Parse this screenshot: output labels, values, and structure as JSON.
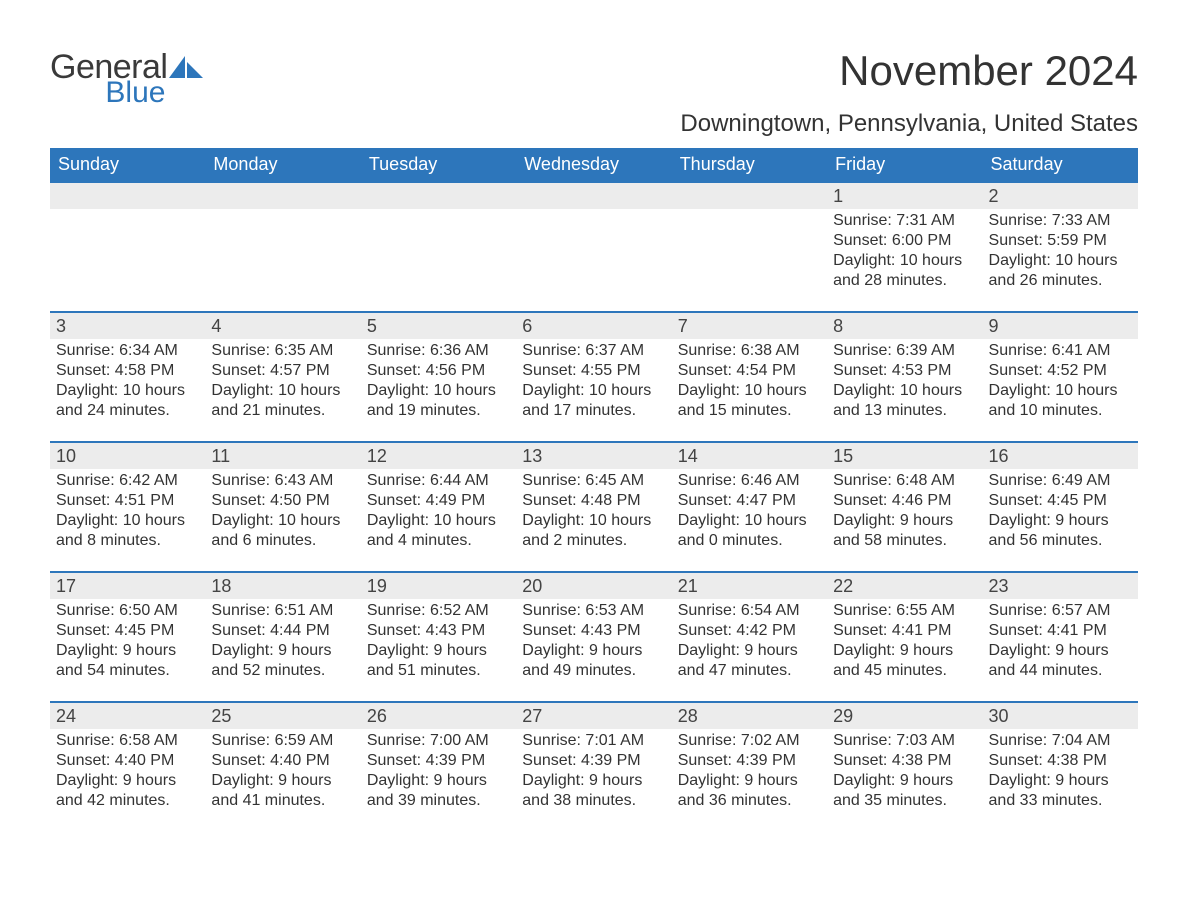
{
  "brand": {
    "word1": "General",
    "word2": "Blue",
    "icon_name": "sail-icon",
    "colors": {
      "brand_blue": "#2d76bb",
      "text": "#333333"
    }
  },
  "title": {
    "month": "November 2024",
    "location": "Downingtown, Pennsylvania, United States"
  },
  "table": {
    "header_bg": "#2d76bb",
    "header_fg": "#ffffff",
    "daynum_bg": "#ececec",
    "rule_color": "#2d76bb",
    "columns": [
      "Sunday",
      "Monday",
      "Tuesday",
      "Wednesday",
      "Thursday",
      "Friday",
      "Saturday"
    ],
    "label": {
      "sunrise": "Sunrise:",
      "sunset": "Sunset:",
      "daylight": "Daylight:"
    },
    "weeks": [
      [
        {
          "empty": true
        },
        {
          "empty": true
        },
        {
          "empty": true
        },
        {
          "empty": true
        },
        {
          "empty": true
        },
        {
          "day": "1",
          "sunrise": "7:31 AM",
          "sunset": "6:00 PM",
          "daylight": "10 hours and 28 minutes."
        },
        {
          "day": "2",
          "sunrise": "7:33 AM",
          "sunset": "5:59 PM",
          "daylight": "10 hours and 26 minutes."
        }
      ],
      [
        {
          "day": "3",
          "sunrise": "6:34 AM",
          "sunset": "4:58 PM",
          "daylight": "10 hours and 24 minutes."
        },
        {
          "day": "4",
          "sunrise": "6:35 AM",
          "sunset": "4:57 PM",
          "daylight": "10 hours and 21 minutes."
        },
        {
          "day": "5",
          "sunrise": "6:36 AM",
          "sunset": "4:56 PM",
          "daylight": "10 hours and 19 minutes."
        },
        {
          "day": "6",
          "sunrise": "6:37 AM",
          "sunset": "4:55 PM",
          "daylight": "10 hours and 17 minutes."
        },
        {
          "day": "7",
          "sunrise": "6:38 AM",
          "sunset": "4:54 PM",
          "daylight": "10 hours and 15 minutes."
        },
        {
          "day": "8",
          "sunrise": "6:39 AM",
          "sunset": "4:53 PM",
          "daylight": "10 hours and 13 minutes."
        },
        {
          "day": "9",
          "sunrise": "6:41 AM",
          "sunset": "4:52 PM",
          "daylight": "10 hours and 10 minutes."
        }
      ],
      [
        {
          "day": "10",
          "sunrise": "6:42 AM",
          "sunset": "4:51 PM",
          "daylight": "10 hours and 8 minutes."
        },
        {
          "day": "11",
          "sunrise": "6:43 AM",
          "sunset": "4:50 PM",
          "daylight": "10 hours and 6 minutes."
        },
        {
          "day": "12",
          "sunrise": "6:44 AM",
          "sunset": "4:49 PM",
          "daylight": "10 hours and 4 minutes."
        },
        {
          "day": "13",
          "sunrise": "6:45 AM",
          "sunset": "4:48 PM",
          "daylight": "10 hours and 2 minutes."
        },
        {
          "day": "14",
          "sunrise": "6:46 AM",
          "sunset": "4:47 PM",
          "daylight": "10 hours and 0 minutes."
        },
        {
          "day": "15",
          "sunrise": "6:48 AM",
          "sunset": "4:46 PM",
          "daylight": "9 hours and 58 minutes."
        },
        {
          "day": "16",
          "sunrise": "6:49 AM",
          "sunset": "4:45 PM",
          "daylight": "9 hours and 56 minutes."
        }
      ],
      [
        {
          "day": "17",
          "sunrise": "6:50 AM",
          "sunset": "4:45 PM",
          "daylight": "9 hours and 54 minutes."
        },
        {
          "day": "18",
          "sunrise": "6:51 AM",
          "sunset": "4:44 PM",
          "daylight": "9 hours and 52 minutes."
        },
        {
          "day": "19",
          "sunrise": "6:52 AM",
          "sunset": "4:43 PM",
          "daylight": "9 hours and 51 minutes."
        },
        {
          "day": "20",
          "sunrise": "6:53 AM",
          "sunset": "4:43 PM",
          "daylight": "9 hours and 49 minutes."
        },
        {
          "day": "21",
          "sunrise": "6:54 AM",
          "sunset": "4:42 PM",
          "daylight": "9 hours and 47 minutes."
        },
        {
          "day": "22",
          "sunrise": "6:55 AM",
          "sunset": "4:41 PM",
          "daylight": "9 hours and 45 minutes."
        },
        {
          "day": "23",
          "sunrise": "6:57 AM",
          "sunset": "4:41 PM",
          "daylight": "9 hours and 44 minutes."
        }
      ],
      [
        {
          "day": "24",
          "sunrise": "6:58 AM",
          "sunset": "4:40 PM",
          "daylight": "9 hours and 42 minutes."
        },
        {
          "day": "25",
          "sunrise": "6:59 AM",
          "sunset": "4:40 PM",
          "daylight": "9 hours and 41 minutes."
        },
        {
          "day": "26",
          "sunrise": "7:00 AM",
          "sunset": "4:39 PM",
          "daylight": "9 hours and 39 minutes."
        },
        {
          "day": "27",
          "sunrise": "7:01 AM",
          "sunset": "4:39 PM",
          "daylight": "9 hours and 38 minutes."
        },
        {
          "day": "28",
          "sunrise": "7:02 AM",
          "sunset": "4:39 PM",
          "daylight": "9 hours and 36 minutes."
        },
        {
          "day": "29",
          "sunrise": "7:03 AM",
          "sunset": "4:38 PM",
          "daylight": "9 hours and 35 minutes."
        },
        {
          "day": "30",
          "sunrise": "7:04 AM",
          "sunset": "4:38 PM",
          "daylight": "9 hours and 33 minutes."
        }
      ]
    ]
  }
}
